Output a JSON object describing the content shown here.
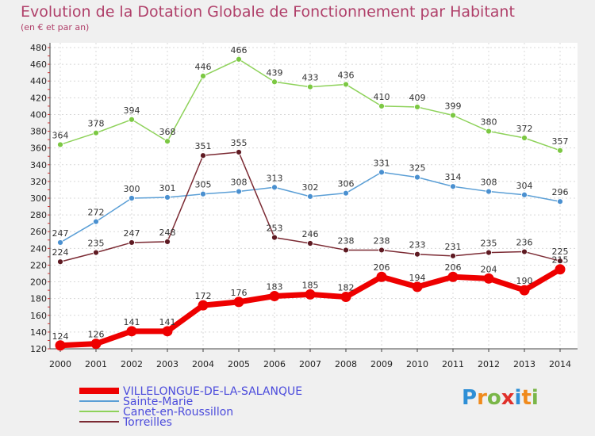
{
  "title": "Evolution de la Dotation Globale de Fonctionnement par Habitant",
  "subtitle": "(en € et par an)",
  "logo": {
    "letters": [
      "P",
      "r",
      "o",
      "x",
      "i",
      "t",
      "i"
    ],
    "colors": [
      "#2e8fd6",
      "#f08a1c",
      "#7ab648",
      "#e0302a",
      "#2e8fd6",
      "#f08a1c",
      "#7ab648"
    ]
  },
  "chart_data": {
    "type": "line",
    "title": "Evolution de la Dotation Globale de Fonctionnement par Habitant",
    "xlabel": "",
    "ylabel": "(en € et par an)",
    "ylim": [
      120,
      480
    ],
    "grid": true,
    "categories": [
      "2000",
      "2001",
      "2002",
      "2003",
      "2004",
      "2005",
      "2006",
      "2007",
      "2008",
      "2009",
      "2010",
      "2011",
      "2012",
      "2013",
      "2014"
    ],
    "yticks": [
      120,
      140,
      160,
      180,
      200,
      220,
      240,
      260,
      280,
      300,
      320,
      340,
      360,
      380,
      400,
      420,
      440,
      460,
      480
    ],
    "series": [
      {
        "name": "Canet-en-Roussillon",
        "color": "#8ed25a",
        "dot": "#7cc843",
        "values": [
          364,
          378,
          394,
          368,
          446,
          466,
          439,
          433,
          436,
          410,
          409,
          399,
          380,
          372,
          357
        ]
      },
      {
        "name": "Sainte-Marie",
        "color": "#5b9fd6",
        "dot": "#4a90d0",
        "values": [
          247,
          272,
          300,
          301,
          305,
          308,
          313,
          302,
          306,
          331,
          325,
          314,
          308,
          304,
          296
        ]
      },
      {
        "name": "Torreilles",
        "color": "#7b2a33",
        "dot": "#5e1a22",
        "values": [
          224,
          235,
          247,
          248,
          351,
          355,
          253,
          246,
          238,
          238,
          233,
          231,
          235,
          236,
          225
        ]
      },
      {
        "name": "VILLELONGUE-DE-LA-SALANQUE",
        "color": "#ee0000",
        "dot": "#ee0000",
        "values": [
          124,
          126,
          141,
          141,
          172,
          176,
          183,
          185,
          182,
          206,
          194,
          206,
          204,
          190,
          215
        ]
      }
    ],
    "legend_order": [
      "VILLELONGUE-DE-LA-SALANQUE",
      "Sainte-Marie",
      "Canet-en-Roussillon",
      "Torreilles"
    ],
    "legend_position": "bottom-left"
  }
}
